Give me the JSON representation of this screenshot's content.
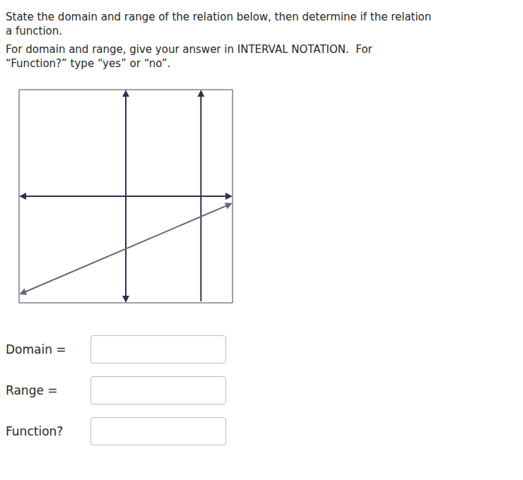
{
  "chart_data": {
    "type": "line",
    "title": [
      "State the domain and range of the relation below, then determine if the relation",
      "a function."
    ],
    "subtitle": [
      "For domain and range, give your answer in INTERVAL NOTATION.  For",
      "“Function?” type “yes” or “no”."
    ],
    "annotations": [
      "Domain =",
      "Range =",
      "Function?"
    ],
    "xlim": [
      -7.1,
      7.1
    ],
    "ylim": [
      -7.1,
      7.1
    ],
    "xticks": [
      -7,
      -6,
      -5,
      -4,
      -3,
      -2,
      -1,
      0,
      1,
      2,
      3,
      4,
      5,
      6,
      7
    ],
    "yticks": [
      -7,
      -6,
      -5,
      -4,
      -3,
      -2,
      -1,
      0,
      1,
      2,
      3,
      4,
      5,
      6,
      7
    ],
    "grid": true,
    "tick_labels": false,
    "series": [
      {
        "x": [
          -7,
          7
        ],
        "values": [
          0,
          0
        ],
        "color": "#2d3050",
        "marker": "arrows_both"
      },
      {
        "x": [
          0,
          0
        ],
        "values": [
          -7,
          7
        ],
        "color": "#2d3050",
        "marker": "arrows_both"
      },
      {
        "x": [
          5,
          5
        ],
        "values": [
          -7,
          7
        ],
        "color": "#2d3050",
        "marker": "arrow_end"
      },
      {
        "x": [
          -7,
          7
        ],
        "values": [
          -6.5,
          -0.5
        ],
        "color": "#606878",
        "marker": "arrows_both"
      }
    ]
  }
}
